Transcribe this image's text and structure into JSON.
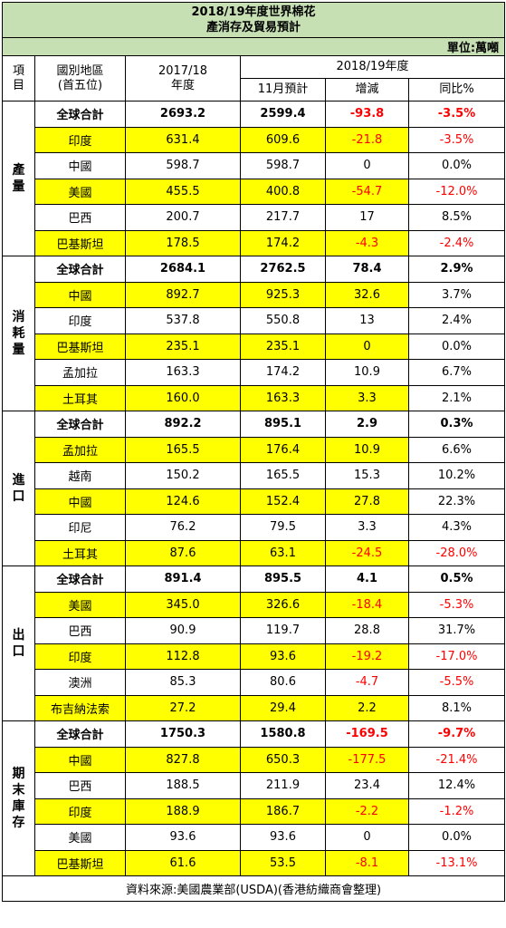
{
  "title_line1": "2018/19年度世界棉花",
  "title_line2": "產消存及貿易預計",
  "unit": "單位:萬噸",
  "headers": {
    "item": [
      "項",
      "目"
    ],
    "region": [
      "國別地區",
      "(首五位)"
    ],
    "y2017": [
      "2017/18",
      "年度"
    ],
    "y2018": "2018/19年度",
    "nov": "11月預計",
    "change": "增減",
    "yoy": "同比%"
  },
  "sections": [
    {
      "label": [
        "產",
        "量"
      ],
      "rows": [
        {
          "region": "全球合計",
          "y2017": "2693.2",
          "nov": "2599.4",
          "change": "-93.8",
          "yoy": "-3.5%",
          "total": true,
          "highlight": false
        },
        {
          "region": "印度",
          "y2017": "631.4",
          "nov": "609.6",
          "change": "-21.8",
          "yoy": "-3.5%",
          "total": false,
          "highlight": true
        },
        {
          "region": "中國",
          "y2017": "598.7",
          "nov": "598.7",
          "change": "0",
          "yoy": "0.0%",
          "total": false,
          "highlight": false
        },
        {
          "region": "美國",
          "y2017": "455.5",
          "nov": "400.8",
          "change": "-54.7",
          "yoy": "-12.0%",
          "total": false,
          "highlight": true
        },
        {
          "region": "巴西",
          "y2017": "200.7",
          "nov": "217.7",
          "change": "17",
          "yoy": "8.5%",
          "total": false,
          "highlight": false
        },
        {
          "region": "巴基斯坦",
          "y2017": "178.5",
          "nov": "174.2",
          "change": "-4.3",
          "yoy": "-2.4%",
          "total": false,
          "highlight": true
        }
      ]
    },
    {
      "label": [
        "消",
        "耗",
        "量"
      ],
      "rows": [
        {
          "region": "全球合計",
          "y2017": "2684.1",
          "nov": "2762.5",
          "change": "78.4",
          "yoy": "2.9%",
          "total": true,
          "highlight": false
        },
        {
          "region": "中國",
          "y2017": "892.7",
          "nov": "925.3",
          "change": "32.6",
          "yoy": "3.7%",
          "total": false,
          "highlight": true
        },
        {
          "region": "印度",
          "y2017": "537.8",
          "nov": "550.8",
          "change": "13",
          "yoy": "2.4%",
          "total": false,
          "highlight": false
        },
        {
          "region": "巴基斯坦",
          "y2017": "235.1",
          "nov": "235.1",
          "change": "0",
          "yoy": "0.0%",
          "total": false,
          "highlight": true
        },
        {
          "region": "孟加拉",
          "y2017": "163.3",
          "nov": "174.2",
          "change": "10.9",
          "yoy": "6.7%",
          "total": false,
          "highlight": false
        },
        {
          "region": "土耳其",
          "y2017": "160.0",
          "nov": "163.3",
          "change": "3.3",
          "yoy": "2.1%",
          "total": false,
          "highlight": true
        }
      ]
    },
    {
      "label": [
        "進",
        "口"
      ],
      "rows": [
        {
          "region": "全球合計",
          "y2017": "892.2",
          "nov": "895.1",
          "change": "2.9",
          "yoy": "0.3%",
          "total": true,
          "highlight": false
        },
        {
          "region": "孟加拉",
          "y2017": "165.5",
          "nov": "176.4",
          "change": "10.9",
          "yoy": "6.6%",
          "total": false,
          "highlight": true
        },
        {
          "region": "越南",
          "y2017": "150.2",
          "nov": "165.5",
          "change": "15.3",
          "yoy": "10.2%",
          "total": false,
          "highlight": false
        },
        {
          "region": "中國",
          "y2017": "124.6",
          "nov": "152.4",
          "change": "27.8",
          "yoy": "22.3%",
          "total": false,
          "highlight": true
        },
        {
          "region": "印尼",
          "y2017": "76.2",
          "nov": "79.5",
          "change": "3.3",
          "yoy": "4.3%",
          "total": false,
          "highlight": false
        },
        {
          "region": "土耳其",
          "y2017": "87.6",
          "nov": "63.1",
          "change": "-24.5",
          "yoy": "-28.0%",
          "total": false,
          "highlight": true
        }
      ]
    },
    {
      "label": [
        "出",
        "口"
      ],
      "rows": [
        {
          "region": "全球合計",
          "y2017": "891.4",
          "nov": "895.5",
          "change": "4.1",
          "yoy": "0.5%",
          "total": true,
          "highlight": false
        },
        {
          "region": "美國",
          "y2017": "345.0",
          "nov": "326.6",
          "change": "-18.4",
          "yoy": "-5.3%",
          "total": false,
          "highlight": true
        },
        {
          "region": "巴西",
          "y2017": "90.9",
          "nov": "119.7",
          "change": "28.8",
          "yoy": "31.7%",
          "total": false,
          "highlight": false
        },
        {
          "region": "印度",
          "y2017": "112.8",
          "nov": "93.6",
          "change": "-19.2",
          "yoy": "-17.0%",
          "total": false,
          "highlight": true
        },
        {
          "region": "澳洲",
          "y2017": "85.3",
          "nov": "80.6",
          "change": "-4.7",
          "yoy": "-5.5%",
          "total": false,
          "highlight": false
        },
        {
          "region": "布吉納法索",
          "y2017": "27.2",
          "nov": "29.4",
          "change": "2.2",
          "yoy": "8.1%",
          "total": false,
          "highlight": true
        }
      ]
    },
    {
      "label": [
        "期",
        "末",
        "庫",
        "存"
      ],
      "rows": [
        {
          "region": "全球合計",
          "y2017": "1750.3",
          "nov": "1580.8",
          "change": "-169.5",
          "yoy": "-9.7%",
          "total": true,
          "highlight": false
        },
        {
          "region": "中國",
          "y2017": "827.8",
          "nov": "650.3",
          "change": "-177.5",
          "yoy": "-21.4%",
          "total": false,
          "highlight": true
        },
        {
          "region": "巴西",
          "y2017": "188.5",
          "nov": "211.9",
          "change": "23.4",
          "yoy": "12.4%",
          "total": false,
          "highlight": false
        },
        {
          "region": "印度",
          "y2017": "188.9",
          "nov": "186.7",
          "change": "-2.2",
          "yoy": "-1.2%",
          "total": false,
          "highlight": true
        },
        {
          "region": "美國",
          "y2017": "93.6",
          "nov": "93.6",
          "change": "0",
          "yoy": "0.0%",
          "total": false,
          "highlight": false
        },
        {
          "region": "巴基斯坦",
          "y2017": "61.6",
          "nov": "53.5",
          "change": "-8.1",
          "yoy": "-13.1%",
          "total": false,
          "highlight": true
        }
      ]
    }
  ],
  "footer": "資料來源:美國農業部(USDA)(香港紡織商會整理)",
  "colors": {
    "header_bg": "#c6e0b4",
    "highlight": "#ffff00",
    "negative": "#ff0000"
  }
}
